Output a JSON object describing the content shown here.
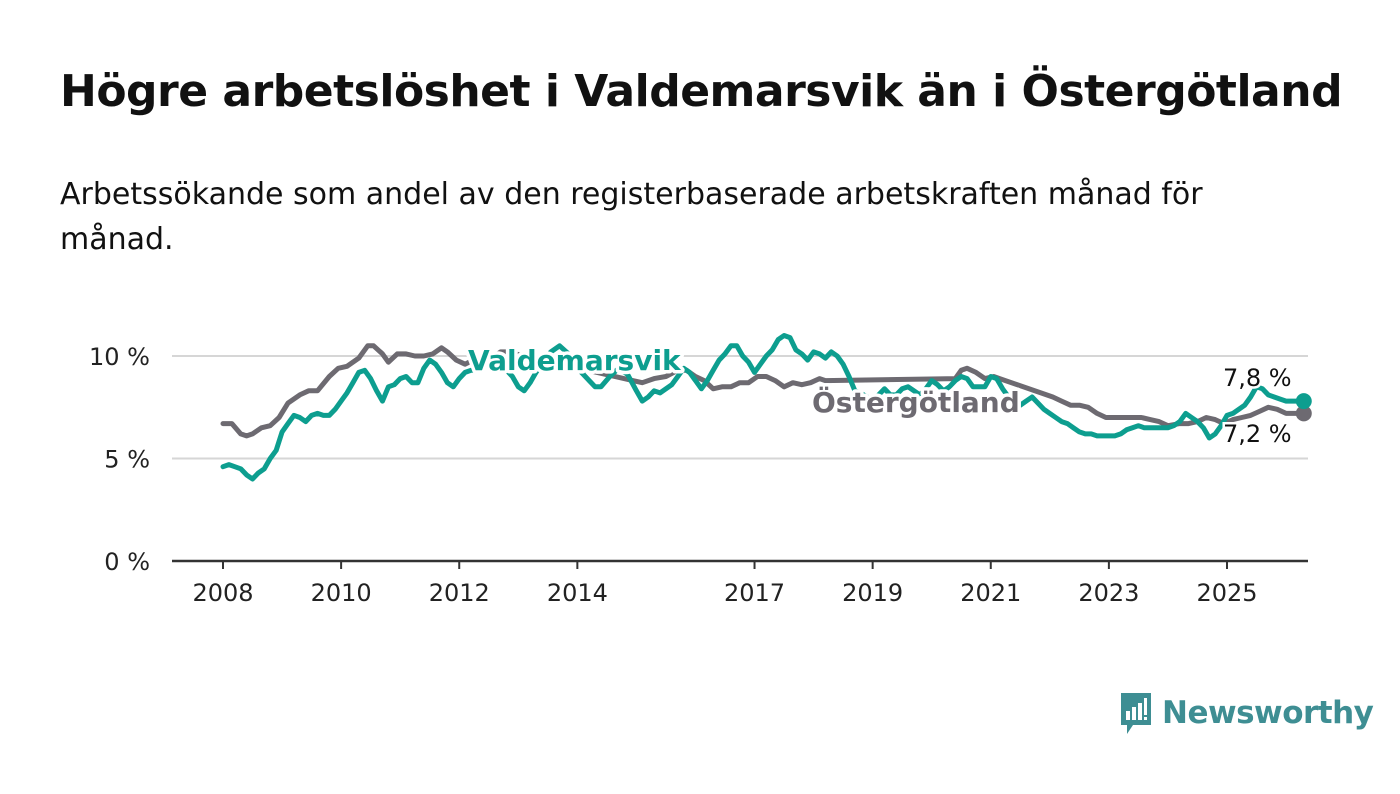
{
  "header": {
    "title": "Högre arbetslöshet i Valdemarsvik än i Östergötland",
    "subtitle": "Arbetssökande som andel av den registerbaserade arbetskraften månad för månad."
  },
  "brand": {
    "name": "Newsworthy",
    "icon": "bar-chart-speech-bubble-icon",
    "color": "#3e8e93"
  },
  "chart_data": {
    "type": "line",
    "ylim": [
      0,
      11.2
    ],
    "yticks": [
      0,
      5,
      10
    ],
    "ytick_labels": [
      "0 %",
      "5 %",
      "10 %"
    ],
    "xticks": [
      2008,
      2010,
      2012,
      2014,
      2017,
      2019,
      2021,
      2023,
      2025
    ],
    "xtick_labels": [
      "2008",
      "2010",
      "2012",
      "2014",
      "2017",
      "2019",
      "2021",
      "2023",
      "2025"
    ],
    "grid": true,
    "series": [
      {
        "name": "Östergötland",
        "color": "#6d6a71",
        "end_label": "7,2 %",
        "label": "Östergötland",
        "points": [
          [
            2008.0,
            6.7
          ],
          [
            2008.15,
            6.7
          ],
          [
            2008.3,
            6.2
          ],
          [
            2008.4,
            6.1
          ],
          [
            2008.5,
            6.2
          ],
          [
            2008.65,
            6.5
          ],
          [
            2008.8,
            6.6
          ],
          [
            2008.95,
            7.0
          ],
          [
            2009.1,
            7.7
          ],
          [
            2009.3,
            8.1
          ],
          [
            2009.45,
            8.3
          ],
          [
            2009.6,
            8.3
          ],
          [
            2009.8,
            9.0
          ],
          [
            2009.95,
            9.4
          ],
          [
            2010.1,
            9.5
          ],
          [
            2010.3,
            9.9
          ],
          [
            2010.45,
            10.5
          ],
          [
            2010.55,
            10.5
          ],
          [
            2010.7,
            10.1
          ],
          [
            2010.8,
            9.7
          ],
          [
            2010.95,
            10.1
          ],
          [
            2011.1,
            10.1
          ],
          [
            2011.25,
            10.0
          ],
          [
            2011.4,
            10.0
          ],
          [
            2011.55,
            10.1
          ],
          [
            2011.7,
            10.4
          ],
          [
            2011.8,
            10.2
          ],
          [
            2011.95,
            9.8
          ],
          [
            2012.1,
            9.6
          ],
          [
            2012.3,
            9.9
          ],
          [
            2012.45,
            9.8
          ],
          [
            2012.55,
            9.9
          ],
          [
            2012.7,
            10.2
          ],
          [
            2012.8,
            10.2
          ],
          [
            2015.1,
            8.7
          ],
          [
            2015.3,
            8.9
          ],
          [
            2015.5,
            9.0
          ],
          [
            2015.7,
            9.3
          ],
          [
            2015.85,
            9.3
          ],
          [
            2016.0,
            9.0
          ],
          [
            2016.15,
            8.8
          ],
          [
            2016.3,
            8.4
          ],
          [
            2016.45,
            8.5
          ],
          [
            2016.6,
            8.5
          ],
          [
            2016.75,
            8.7
          ],
          [
            2016.9,
            8.7
          ],
          [
            2017.05,
            9.0
          ],
          [
            2017.2,
            9.0
          ],
          [
            2017.35,
            8.8
          ],
          [
            2017.5,
            8.5
          ],
          [
            2017.65,
            8.7
          ],
          [
            2017.8,
            8.6
          ],
          [
            2017.95,
            8.7
          ],
          [
            2018.1,
            8.9
          ],
          [
            2018.2,
            8.8
          ],
          [
            2020.4,
            8.9
          ],
          [
            2020.5,
            9.3
          ],
          [
            2020.6,
            9.4
          ],
          [
            2020.75,
            9.2
          ],
          [
            2020.9,
            8.9
          ],
          [
            2021.05,
            9.0
          ],
          [
            2021.15,
            8.9
          ],
          [
            2022.05,
            8.0
          ],
          [
            2022.2,
            7.8
          ],
          [
            2022.35,
            7.6
          ],
          [
            2022.5,
            7.6
          ],
          [
            2022.65,
            7.5
          ],
          [
            2022.8,
            7.2
          ],
          [
            2022.95,
            7.0
          ],
          [
            2023.1,
            7.0
          ],
          [
            2023.25,
            7.0
          ],
          [
            2023.4,
            7.0
          ],
          [
            2023.55,
            7.0
          ],
          [
            2023.7,
            6.9
          ],
          [
            2023.85,
            6.8
          ],
          [
            2024.0,
            6.6
          ],
          [
            2024.2,
            6.7
          ],
          [
            2024.35,
            6.7
          ],
          [
            2024.5,
            6.8
          ],
          [
            2024.65,
            7.0
          ],
          [
            2024.8,
            6.9
          ],
          [
            2024.95,
            6.7
          ],
          [
            2025.1,
            6.9
          ],
          [
            2025.25,
            7.0
          ],
          [
            2025.4,
            7.1
          ],
          [
            2025.55,
            7.3
          ],
          [
            2025.7,
            7.5
          ],
          [
            2025.85,
            7.4
          ],
          [
            2026.0,
            7.2
          ],
          [
            2026.15,
            7.2
          ],
          [
            2026.3,
            7.2
          ]
        ]
      },
      {
        "name": "Valdemarsvik",
        "color": "#0d9e8f",
        "end_label": "7,8 %",
        "label": "Valdemarsvik",
        "points": [
          [
            2008.0,
            4.6
          ],
          [
            2008.1,
            4.7
          ],
          [
            2008.2,
            4.6
          ],
          [
            2008.3,
            4.5
          ],
          [
            2008.4,
            4.2
          ],
          [
            2008.5,
            4.0
          ],
          [
            2008.6,
            4.3
          ],
          [
            2008.7,
            4.5
          ],
          [
            2008.8,
            5.0
          ],
          [
            2008.9,
            5.4
          ],
          [
            2009.0,
            6.3
          ],
          [
            2009.1,
            6.7
          ],
          [
            2009.2,
            7.1
          ],
          [
            2009.3,
            7.0
          ],
          [
            2009.4,
            6.8
          ],
          [
            2009.5,
            7.1
          ],
          [
            2009.6,
            7.2
          ],
          [
            2009.7,
            7.1
          ],
          [
            2009.8,
            7.1
          ],
          [
            2009.9,
            7.4
          ],
          [
            2010.0,
            7.8
          ],
          [
            2010.1,
            8.2
          ],
          [
            2010.2,
            8.7
          ],
          [
            2010.3,
            9.2
          ],
          [
            2010.4,
            9.3
          ],
          [
            2010.5,
            8.9
          ],
          [
            2010.6,
            8.3
          ],
          [
            2010.7,
            7.8
          ],
          [
            2010.8,
            8.5
          ],
          [
            2010.9,
            8.6
          ],
          [
            2011.0,
            8.9
          ],
          [
            2011.1,
            9.0
          ],
          [
            2011.2,
            8.7
          ],
          [
            2011.3,
            8.7
          ],
          [
            2011.4,
            9.4
          ],
          [
            2011.5,
            9.8
          ],
          [
            2011.6,
            9.6
          ],
          [
            2011.7,
            9.2
          ],
          [
            2011.8,
            8.7
          ],
          [
            2011.9,
            8.5
          ],
          [
            2012.0,
            8.9
          ],
          [
            2012.1,
            9.2
          ],
          [
            2012.2,
            9.3
          ],
          [
            2012.3,
            9.3
          ],
          [
            2012.4,
            9.4
          ],
          [
            2012.5,
            9.8
          ],
          [
            2012.6,
            9.7
          ],
          [
            2012.7,
            9.4
          ],
          [
            2012.8,
            9.3
          ],
          [
            2012.9,
            9.0
          ],
          [
            2013.0,
            8.5
          ],
          [
            2013.1,
            8.3
          ],
          [
            2013.2,
            8.7
          ],
          [
            2013.3,
            9.2
          ],
          [
            2013.4,
            9.6
          ],
          [
            2013.55,
            10.2
          ],
          [
            2013.7,
            10.5
          ],
          [
            2013.85,
            10.1
          ],
          [
            2014.0,
            9.4
          ],
          [
            2014.1,
            9.1
          ],
          [
            2014.2,
            8.8
          ],
          [
            2014.3,
            8.5
          ],
          [
            2014.4,
            8.5
          ],
          [
            2014.55,
            9.0
          ],
          [
            2014.7,
            9.4
          ],
          [
            2014.85,
            9.1
          ],
          [
            2015.0,
            8.3
          ],
          [
            2015.1,
            7.8
          ],
          [
            2015.2,
            8.0
          ],
          [
            2015.3,
            8.3
          ],
          [
            2015.4,
            8.2
          ],
          [
            2015.5,
            8.4
          ],
          [
            2015.6,
            8.6
          ],
          [
            2015.7,
            9.0
          ],
          [
            2015.8,
            9.4
          ],
          [
            2015.9,
            9.2
          ],
          [
            2016.0,
            8.8
          ],
          [
            2016.1,
            8.4
          ],
          [
            2016.2,
            8.8
          ],
          [
            2016.3,
            9.3
          ],
          [
            2016.4,
            9.8
          ],
          [
            2016.5,
            10.1
          ],
          [
            2016.6,
            10.5
          ],
          [
            2016.7,
            10.5
          ],
          [
            2016.8,
            10.0
          ],
          [
            2016.9,
            9.7
          ],
          [
            2017.0,
            9.2
          ],
          [
            2017.1,
            9.6
          ],
          [
            2017.2,
            10.0
          ],
          [
            2017.3,
            10.3
          ],
          [
            2017.4,
            10.8
          ],
          [
            2017.5,
            11.0
          ],
          [
            2017.6,
            10.9
          ],
          [
            2017.7,
            10.3
          ],
          [
            2017.8,
            10.1
          ],
          [
            2017.9,
            9.8
          ],
          [
            2018.0,
            10.2
          ],
          [
            2018.1,
            10.1
          ],
          [
            2018.2,
            9.9
          ],
          [
            2018.3,
            10.2
          ],
          [
            2018.4,
            10.0
          ],
          [
            2018.5,
            9.6
          ],
          [
            2018.6,
            9.0
          ],
          [
            2018.7,
            8.3
          ],
          [
            2018.8,
            8.2
          ],
          [
            2018.9,
            8.0
          ],
          [
            2019.0,
            7.9
          ],
          [
            2019.1,
            8.1
          ],
          [
            2019.2,
            8.4
          ],
          [
            2019.3,
            8.1
          ],
          [
            2019.4,
            8.1
          ],
          [
            2019.5,
            8.4
          ],
          [
            2019.6,
            8.5
          ],
          [
            2019.7,
            8.3
          ],
          [
            2019.8,
            8.1
          ],
          [
            2019.9,
            8.4
          ],
          [
            2020.0,
            8.8
          ],
          [
            2020.1,
            8.6
          ],
          [
            2020.2,
            8.3
          ],
          [
            2020.3,
            8.5
          ],
          [
            2020.4,
            8.8
          ],
          [
            2020.5,
            9.0
          ],
          [
            2020.6,
            8.9
          ],
          [
            2020.7,
            8.5
          ],
          [
            2020.8,
            8.5
          ],
          [
            2020.9,
            8.5
          ],
          [
            2021.0,
            9.0
          ],
          [
            2021.1,
            8.9
          ],
          [
            2021.2,
            8.4
          ],
          [
            2021.3,
            8.0
          ],
          [
            2021.4,
            7.7
          ],
          [
            2021.5,
            7.6
          ],
          [
            2021.6,
            7.8
          ],
          [
            2021.7,
            8.0
          ],
          [
            2021.8,
            7.7
          ],
          [
            2021.9,
            7.4
          ],
          [
            2022.0,
            7.2
          ],
          [
            2022.1,
            7.0
          ],
          [
            2022.2,
            6.8
          ],
          [
            2022.3,
            6.7
          ],
          [
            2022.4,
            6.5
          ],
          [
            2022.5,
            6.3
          ],
          [
            2022.6,
            6.2
          ],
          [
            2022.7,
            6.2
          ],
          [
            2022.8,
            6.1
          ],
          [
            2022.9,
            6.1
          ],
          [
            2023.0,
            6.1
          ],
          [
            2023.1,
            6.1
          ],
          [
            2023.2,
            6.2
          ],
          [
            2023.3,
            6.4
          ],
          [
            2023.4,
            6.5
          ],
          [
            2023.5,
            6.6
          ],
          [
            2023.6,
            6.5
          ],
          [
            2023.7,
            6.5
          ],
          [
            2023.8,
            6.5
          ],
          [
            2023.9,
            6.5
          ],
          [
            2024.0,
            6.5
          ],
          [
            2024.1,
            6.6
          ],
          [
            2024.2,
            6.8
          ],
          [
            2024.3,
            7.2
          ],
          [
            2024.4,
            7.0
          ],
          [
            2024.5,
            6.8
          ],
          [
            2024.6,
            6.5
          ],
          [
            2024.7,
            6.0
          ],
          [
            2024.8,
            6.2
          ],
          [
            2024.9,
            6.6
          ],
          [
            2025.0,
            7.1
          ],
          [
            2025.1,
            7.2
          ],
          [
            2025.2,
            7.4
          ],
          [
            2025.3,
            7.6
          ],
          [
            2025.4,
            8.0
          ],
          [
            2025.5,
            8.5
          ],
          [
            2025.6,
            8.4
          ],
          [
            2025.7,
            8.1
          ],
          [
            2025.8,
            8.0
          ],
          [
            2025.9,
            7.9
          ],
          [
            2026.0,
            7.8
          ],
          [
            2026.1,
            7.8
          ],
          [
            2026.2,
            7.8
          ],
          [
            2026.3,
            7.8
          ]
        ]
      }
    ]
  }
}
